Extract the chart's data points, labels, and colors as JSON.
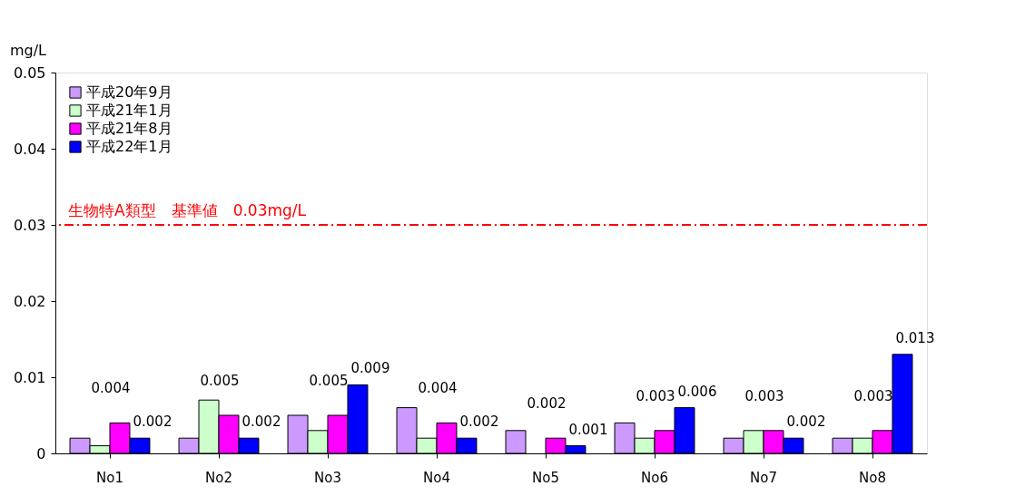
{
  "chart_data": {
    "type": "bar",
    "ylabel": "mg/L",
    "categories": [
      "No1",
      "No2",
      "No3",
      "No4",
      "No5",
      "No6",
      "No7",
      "No8"
    ],
    "series": [
      {
        "name": "平成20年9月",
        "color": "#cc99ff",
        "values": [
          0.002,
          0.002,
          0.005,
          0.006,
          0.003,
          0.004,
          0.002,
          0.002
        ]
      },
      {
        "name": "平成21年1月",
        "color": "#ccffcc",
        "values": [
          0.001,
          0.007,
          0.003,
          0.002,
          null,
          0.002,
          0.003,
          0.002
        ]
      },
      {
        "name": "平成21年8月",
        "color": "#ff00ff",
        "values": [
          0.004,
          0.005,
          0.005,
          0.004,
          0.002,
          0.003,
          0.003,
          0.003
        ],
        "value_labels": [
          "0.004",
          "0.005",
          "0.005",
          "0.004",
          "0.002",
          "0.003",
          "0.003",
          "0.003"
        ]
      },
      {
        "name": "平成22年1月",
        "color": "#0000ff",
        "values": [
          0.002,
          0.002,
          0.009,
          0.002,
          0.001,
          0.006,
          0.002,
          0.013
        ],
        "value_labels": [
          "0.002",
          "0.002",
          "0.009",
          "0.002",
          "0.001",
          "0.006",
          "0.002",
          "0.013"
        ]
      }
    ],
    "ylim": [
      0,
      0.05
    ],
    "yticks": [
      0,
      0.01,
      0.02,
      0.03,
      0.04,
      0.05
    ],
    "grid": false,
    "legend": "top left",
    "ref_lines": [
      {
        "axis": "y",
        "value": 0.03,
        "label": "生物特A類型　基準値　0.03mg/L",
        "color": "#ff0000",
        "line_style": "dashed"
      }
    ]
  }
}
